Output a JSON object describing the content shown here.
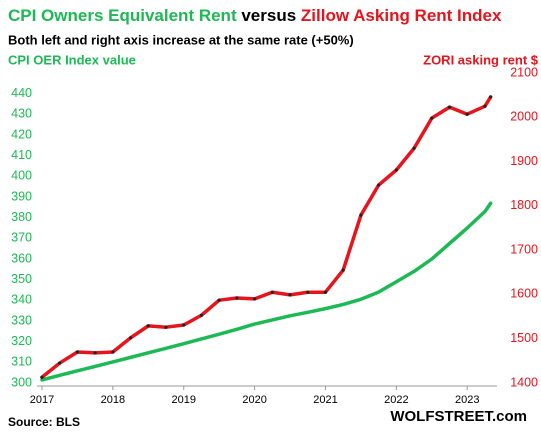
{
  "chart_data": {
    "type": "line",
    "title": [
      "CPI Owners Equivalent Rent",
      "versus",
      "Zillow Asking Rent Index"
    ],
    "title_colors": [
      "#1db954",
      "#000000",
      "#e8141c"
    ],
    "subtitle": "Both left and right axis increase at the same rate (+50%)",
    "y_label": "CPI OER  Index value",
    "y2_label": "ZORI asking rent $",
    "source": "Source: BLS",
    "credit": "WOLFSTREET.com",
    "x": [
      2017,
      2017.25,
      2017.5,
      2017.75,
      2018,
      2018.25,
      2018.5,
      2018.75,
      2019,
      2019.25,
      2019.5,
      2019.75,
      2020,
      2020.25,
      2020.5,
      2020.75,
      2021,
      2021.25,
      2021.5,
      2021.75,
      2022,
      2022.25,
      2022.5,
      2022.75,
      2023,
      2023.25,
      2023.33
    ],
    "xlim": [
      2016.93,
      2023.42
    ],
    "xticks": [
      2017,
      2018,
      2019,
      2020,
      2021,
      2022,
      2023
    ],
    "ylim": [
      300,
      450
    ],
    "yticks": [
      300,
      310,
      320,
      330,
      340,
      350,
      360,
      370,
      380,
      390,
      400,
      410,
      420,
      430,
      440
    ],
    "y2lim": [
      1400,
      2100
    ],
    "y2ticks": [
      1400,
      1500,
      1600,
      1700,
      1800,
      1900,
      2000,
      2100
    ],
    "series": [
      {
        "name": "CPI Owners Equivalent Rent",
        "color": "#1db954",
        "axis": "y",
        "values": [
          301.5,
          303.7,
          305.9,
          308,
          310.2,
          312.4,
          314.6,
          316.8,
          319,
          321.3,
          323.6,
          326,
          328.5,
          330.5,
          332.5,
          334.2,
          336,
          338,
          340.5,
          344,
          349,
          354,
          360,
          367.5,
          375,
          383,
          387
        ]
      },
      {
        "name": "Zillow Asking Rent Index",
        "color": "#e8141c",
        "axis": "y2",
        "markers": true,
        "values": [
          1413,
          1445,
          1470,
          1468,
          1470,
          1502,
          1529,
          1526,
          1531,
          1553,
          1587,
          1592,
          1590,
          1605,
          1599,
          1605,
          1605,
          1655,
          1779,
          1847,
          1881,
          1930,
          1998,
          2023,
          2007,
          2025,
          2046
        ]
      }
    ]
  }
}
